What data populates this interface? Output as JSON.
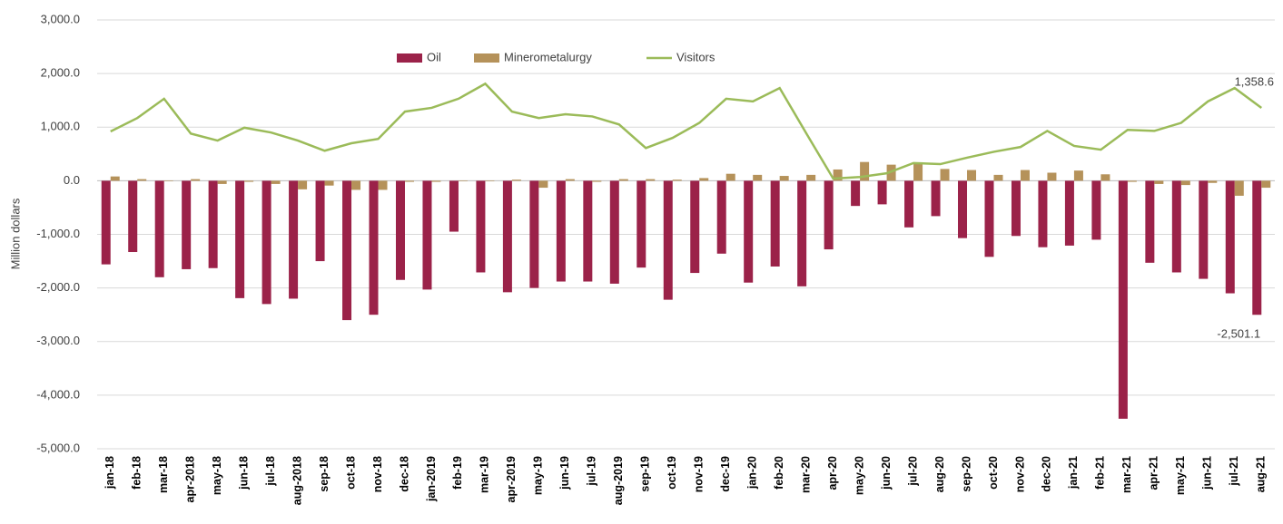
{
  "chart_data": {
    "type": "bar",
    "y_axis_label": "Million dollars",
    "legend": "top",
    "categories": [
      "jan-18",
      "feb-18",
      "mar-18",
      "apr-2018",
      "may-18",
      "jun-18",
      "jul-18",
      "aug-2018",
      "sep-18",
      "oct-18",
      "nov-18",
      "dec-18",
      "jan-2019",
      "feb-19",
      "mar-19",
      "apr-2019",
      "may-19",
      "jun-19",
      "jul-19",
      "aug-2019",
      "sep-19",
      "oct-19",
      "nov-19",
      "dec-19",
      "jan-20",
      "feb-20",
      "mar-20",
      "apr-20",
      "may-20",
      "jun-20",
      "jul-20",
      "aug-20",
      "sep-20",
      "oct-20",
      "nov-20",
      "dec-20",
      "jan-21",
      "feb-21",
      "mar-21",
      "apr-21",
      "may-21",
      "jun-21",
      "jul-21",
      "aug-21"
    ],
    "series": [
      {
        "name": "Oil",
        "type": "bar",
        "color": "#9b2249",
        "values": [
          -1560,
          -1330,
          -1800,
          -1650,
          -1630,
          -2190,
          -2300,
          -2200,
          -1500,
          -2600,
          -2500,
          -1850,
          -2030,
          -950,
          -1710,
          -2080,
          -2000,
          -1880,
          -1880,
          -1920,
          -1620,
          -2220,
          -1720,
          -1360,
          -1900,
          -1600,
          -1970,
          -1280,
          -470,
          -440,
          -870,
          -660,
          -1070,
          -1420,
          -1030,
          -1240,
          -1210,
          -1100,
          -4440,
          -1530,
          -1710,
          -1830,
          -2100,
          -2501.1
        ],
        "value_labels": [
          null,
          null,
          null,
          null,
          null,
          null,
          null,
          null,
          null,
          null,
          null,
          null,
          null,
          null,
          null,
          null,
          null,
          null,
          null,
          null,
          null,
          null,
          null,
          null,
          null,
          null,
          null,
          null,
          null,
          null,
          null,
          null,
          null,
          null,
          null,
          null,
          null,
          null,
          null,
          null,
          null,
          null,
          null,
          "-2,501.1"
        ]
      },
      {
        "name": "Minerometalurgy",
        "type": "bar",
        "color": "#b5925a",
        "values": [
          80,
          30,
          -10,
          30,
          -60,
          -20,
          -60,
          -160,
          -90,
          -170,
          -170,
          -20,
          -20,
          -10,
          -10,
          20,
          -130,
          30,
          -20,
          30,
          30,
          20,
          50,
          130,
          110,
          90,
          110,
          210,
          350,
          300,
          320,
          220,
          200,
          110,
          200,
          150,
          190,
          120,
          -20,
          -60,
          -80,
          -40,
          -280,
          -130
        ]
      },
      {
        "name": "Visitors",
        "type": "line",
        "color": "#9bbb59",
        "values": [
          920,
          1170,
          1530,
          880,
          750,
          990,
          900,
          750,
          560,
          700,
          780,
          1290,
          1360,
          1530,
          1810,
          1290,
          1170,
          1240,
          1200,
          1050,
          610,
          800,
          1080,
          1530,
          1480,
          1730,
          880,
          40,
          70,
          140,
          330,
          310,
          430,
          540,
          630,
          930,
          650,
          580,
          950,
          930,
          1080,
          1480,
          1730,
          1358.6
        ],
        "value_labels": [
          null,
          null,
          null,
          null,
          null,
          null,
          null,
          null,
          null,
          null,
          null,
          null,
          null,
          null,
          null,
          null,
          null,
          null,
          null,
          null,
          null,
          null,
          null,
          null,
          null,
          null,
          null,
          null,
          null,
          null,
          null,
          null,
          null,
          null,
          null,
          null,
          null,
          null,
          null,
          null,
          null,
          null,
          null,
          "1,358.6"
        ]
      }
    ],
    "ylim": [
      -5000,
      3000
    ],
    "yticks": [
      {
        "value": -5000,
        "label": "-5,000.0"
      },
      {
        "value": -4000,
        "label": "-4,000.0"
      },
      {
        "value": -3000,
        "label": "-3,000.0"
      },
      {
        "value": -2000,
        "label": "-2,000.0"
      },
      {
        "value": -1000,
        "label": "-1,000.0"
      },
      {
        "value": 0,
        "label": "0.0"
      },
      {
        "value": 1000,
        "label": "1,000.0"
      },
      {
        "value": 2000,
        "label": "2,000.0"
      },
      {
        "value": 3000,
        "label": "3,000.0"
      }
    ],
    "grid": true
  }
}
